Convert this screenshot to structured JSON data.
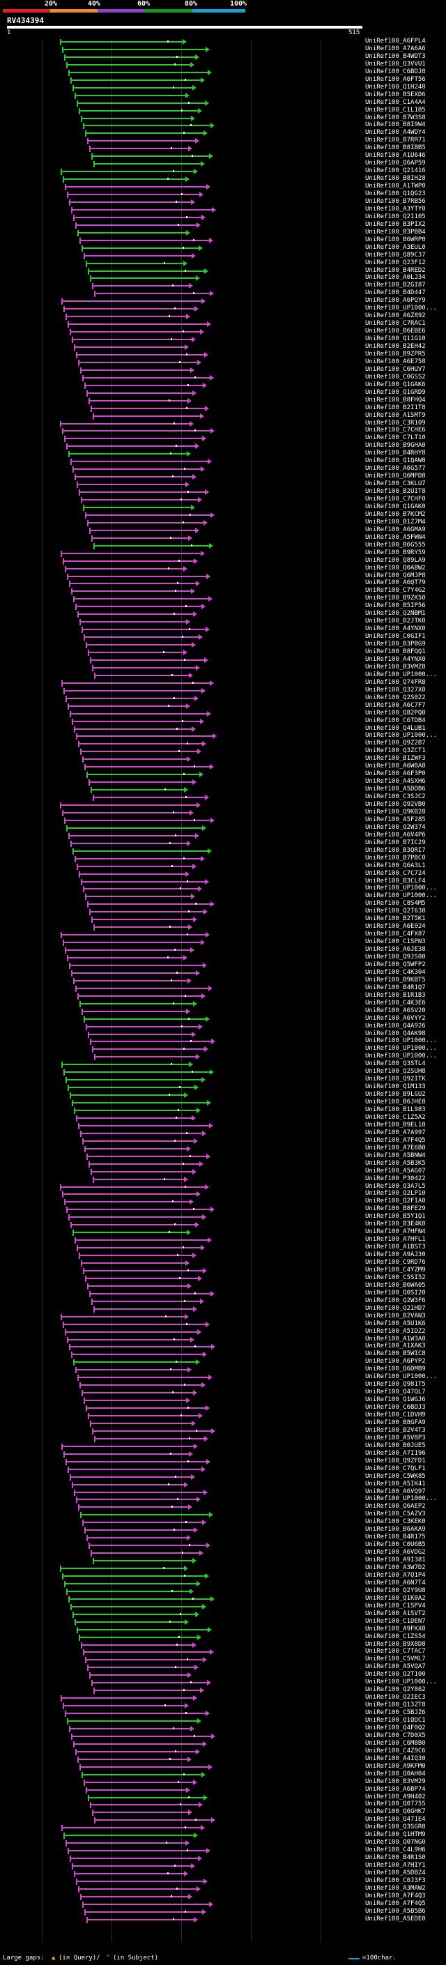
{
  "header": {
    "thresholds": [
      "20%",
      "40%",
      "60%",
      "80%",
      "100%"
    ],
    "band_colors": [
      "#e0192b",
      "#f08a24",
      "#8a43c4",
      "#159a18",
      "#1ca0d6"
    ],
    "query_name": "RV434394"
  },
  "axis": {
    "start_label": "1",
    "end_label": "515"
  },
  "colors": {
    "magenta": "#d048d0",
    "green": "#29c82b",
    "gridline": "#2a2a2a",
    "legend_cyan": "#00a7c7"
  },
  "hits": [
    {
      "label": "UniRef100_A6FPL4",
      "color": "green"
    },
    {
      "label": "UniRef100_A7A6A6",
      "color": "green"
    },
    {
      "label": "UniRef100_B4WDT3",
      "color": "green"
    },
    {
      "label": "UniRef100_Q3VVU1",
      "color": "green"
    },
    {
      "label": "UniRef100_C6BDJ8",
      "color": "green"
    },
    {
      "label": "UniRef100_A6FT56",
      "color": "green"
    },
    {
      "label": "UniRef100_Q1H248",
      "color": "green"
    },
    {
      "label": "UniRef100_B5EXD6",
      "color": "green"
    },
    {
      "label": "UniRef100_C1A4A4",
      "color": "green"
    },
    {
      "label": "UniRef100_C1L1B5",
      "color": "green"
    },
    {
      "label": "UniRef100_B7W3S8",
      "color": "green"
    },
    {
      "label": "UniRef100_B8I9W4",
      "color": "green"
    },
    {
      "label": "UniRef100_A4WDY4",
      "color": "green"
    },
    {
      "label": "UniRef100_B7RR71",
      "color": "magenta"
    },
    {
      "label": "UniRef100_B8IBB5",
      "color": "magenta"
    },
    {
      "label": "UniRef100_A1U646",
      "color": "green"
    },
    {
      "label": "UniRef100_Q6AP59",
      "color": "green"
    },
    {
      "label": "UniRef100_Q21416",
      "color": "green"
    },
    {
      "label": "UniRef100_B8IH28",
      "color": "green"
    },
    {
      "label": "UniRef100_A1TWP0",
      "color": "magenta"
    },
    {
      "label": "UniRef100_Q1QG23",
      "color": "magenta"
    },
    {
      "label": "UniRef100_B7RB56",
      "color": "magenta"
    },
    {
      "label": "UniRef100_A3YTY0",
      "color": "magenta"
    },
    {
      "label": "UniRef100_Q21105",
      "color": "magenta"
    },
    {
      "label": "UniRef100_B3PIX2",
      "color": "magenta"
    },
    {
      "label": "UniRef100_B3PBB4",
      "color": "green"
    },
    {
      "label": "UniRef100_B6WRP0",
      "color": "magenta"
    },
    {
      "label": "UniRef100_A3EUL0",
      "color": "green"
    },
    {
      "label": "UniRef100_Q89C37",
      "color": "magenta"
    },
    {
      "label": "UniRef100_Q23F12",
      "color": "green"
    },
    {
      "label": "UniRef100_B4RED2",
      "color": "green"
    },
    {
      "label": "UniRef100_A0LJ34",
      "color": "green"
    },
    {
      "label": "UniRef100_B2GI87",
      "color": "magenta"
    },
    {
      "label": "UniRef100_B4D447",
      "color": "magenta"
    },
    {
      "label": "UniRef100_A6PQY9",
      "color": "magenta"
    },
    {
      "label": "UniRef100_UP1000...",
      "color": "magenta"
    },
    {
      "label": "UniRef100_A6Z892",
      "color": "magenta"
    },
    {
      "label": "UniRef100_C7RAC1",
      "color": "magenta"
    },
    {
      "label": "UniRef100_B6EBE6",
      "color": "magenta"
    },
    {
      "label": "UniRef100_Q11G10",
      "color": "magenta"
    },
    {
      "label": "UniRef100_B2EH42",
      "color": "magenta"
    },
    {
      "label": "UniRef100_B9ZPR5",
      "color": "magenta"
    },
    {
      "label": "UniRef100_A6E758",
      "color": "magenta"
    },
    {
      "label": "UniRef100_C6HUV7",
      "color": "magenta"
    },
    {
      "label": "UniRef100_C0GSS2",
      "color": "magenta"
    },
    {
      "label": "UniRef100_Q1GAK6",
      "color": "magenta"
    },
    {
      "label": "UniRef100_Q1GRD9",
      "color": "magenta"
    },
    {
      "label": "UniRef100_B8FHQ4",
      "color": "magenta"
    },
    {
      "label": "UniRef100_B2I1T8",
      "color": "magenta"
    },
    {
      "label": "UniRef100_A1SMT9",
      "color": "magenta"
    },
    {
      "label": "UniRef100_C3R109",
      "color": "magenta"
    },
    {
      "label": "UniRef100_C7CHE6",
      "color": "magenta"
    },
    {
      "label": "UniRef100_C7LT10",
      "color": "magenta"
    },
    {
      "label": "UniRef100_B9GHA0",
      "color": "magenta"
    },
    {
      "label": "UniRef100_B4RHY8",
      "color": "green"
    },
    {
      "label": "UniRef100_Q1QAW8",
      "color": "magenta"
    },
    {
      "label": "UniRef100_A6G577",
      "color": "magenta"
    },
    {
      "label": "UniRef100_Q6MPD8",
      "color": "magenta"
    },
    {
      "label": "UniRef100_C3KLU7",
      "color": "magenta"
    },
    {
      "label": "UniRef100_B2UIT8",
      "color": "magenta"
    },
    {
      "label": "UniRef100_C7CHF0",
      "color": "magenta"
    },
    {
      "label": "UniRef100_Q1GAK0",
      "color": "green"
    },
    {
      "label": "UniRef100_B7KCM2",
      "color": "magenta"
    },
    {
      "label": "UniRef100_B1Z7M4",
      "color": "magenta"
    },
    {
      "label": "UniRef100_A6GMA9",
      "color": "magenta"
    },
    {
      "label": "UniRef100_A5FWN4",
      "color": "magenta"
    },
    {
      "label": "UniRef100_B6G555",
      "color": "green"
    },
    {
      "label": "UniRef100_B9RY59",
      "color": "magenta"
    },
    {
      "label": "UniRef100_Q89LA9",
      "color": "magenta"
    },
    {
      "label": "UniRef100_Q0ABW2",
      "color": "magenta"
    },
    {
      "label": "UniRef100_Q6MJP8",
      "color": "magenta"
    },
    {
      "label": "UniRef100_A6QT79",
      "color": "magenta"
    },
    {
      "label": "UniRef100_C7Y4G2",
      "color": "magenta"
    },
    {
      "label": "UniRef100_B9ZK50",
      "color": "magenta"
    },
    {
      "label": "UniRef100_B5IP56",
      "color": "magenta"
    },
    {
      "label": "UniRef100_Q2NBM1",
      "color": "magenta"
    },
    {
      "label": "UniRef100_B2JTK0",
      "color": "magenta"
    },
    {
      "label": "UniRef100_A4YNX0",
      "color": "magenta"
    },
    {
      "label": "UniRef100_C0GIF1",
      "color": "magenta"
    },
    {
      "label": "UniRef100_B3PBG9",
      "color": "magenta"
    },
    {
      "label": "UniRef100_B8FQQ1",
      "color": "magenta"
    },
    {
      "label": "UniRef100_A4YNX0",
      "color": "magenta"
    },
    {
      "label": "UniRef100_B3VMZ8",
      "color": "magenta"
    },
    {
      "label": "UniRef100_UP1000...",
      "color": "magenta"
    },
    {
      "label": "UniRef100_Q74FR8",
      "color": "magenta"
    },
    {
      "label": "UniRef100_Q327X0",
      "color": "magenta"
    },
    {
      "label": "UniRef100_Q2S022",
      "color": "magenta"
    },
    {
      "label": "UniRef100_A6C7F7",
      "color": "magenta"
    },
    {
      "label": "UniRef100_Q82PQ0",
      "color": "magenta"
    },
    {
      "label": "UniRef100_C6TDB4",
      "color": "magenta"
    },
    {
      "label": "UniRef100_Q4LUB1",
      "color": "magenta"
    },
    {
      "label": "UniRef100_UP1000...",
      "color": "magenta"
    },
    {
      "label": "UniRef100_Q9Z2B7",
      "color": "magenta"
    },
    {
      "label": "UniRef100_Q3ZCT1",
      "color": "magenta"
    },
    {
      "label": "UniRef100_B1ZWF3",
      "color": "magenta"
    },
    {
      "label": "UniRef100_A6W0A8",
      "color": "magenta"
    },
    {
      "label": "UniRef100_A6F3P0",
      "color": "green"
    },
    {
      "label": "UniRef100_A4SXH6",
      "color": "magenta"
    },
    {
      "label": "UniRef100_A5DDB6",
      "color": "green"
    },
    {
      "label": "UniRef100_C3SJC2",
      "color": "magenta"
    },
    {
      "label": "UniRef100_Q92VB0",
      "color": "magenta"
    },
    {
      "label": "UniRef100_Q9KB28",
      "color": "magenta"
    },
    {
      "label": "UniRef100_A5F285",
      "color": "magenta"
    },
    {
      "label": "UniRef100_Q2W374",
      "color": "green"
    },
    {
      "label": "UniRef100_A6V4P6",
      "color": "magenta"
    },
    {
      "label": "UniRef100_B7IC29",
      "color": "magenta"
    },
    {
      "label": "UniRef100_B3QRI7",
      "color": "green"
    },
    {
      "label": "UniRef100_B7PBC0",
      "color": "magenta"
    },
    {
      "label": "UniRef100_Q6A3L1",
      "color": "magenta"
    },
    {
      "label": "UniRef100_C7C724",
      "color": "magenta"
    },
    {
      "label": "UniRef100_B3CLF4",
      "color": "magenta"
    },
    {
      "label": "UniRef100_UP1000...",
      "color": "magenta"
    },
    {
      "label": "UniRef100_UP1000...",
      "color": "magenta"
    },
    {
      "label": "UniRef100_C8S4M5",
      "color": "magenta"
    },
    {
      "label": "UniRef100_Q2T638",
      "color": "magenta"
    },
    {
      "label": "UniRef100_B2T5K1",
      "color": "magenta"
    },
    {
      "label": "UniRef100_A6E024",
      "color": "magenta"
    },
    {
      "label": "UniRef100_C4FX87",
      "color": "magenta"
    },
    {
      "label": "UniRef100_C1SPN3",
      "color": "magenta"
    },
    {
      "label": "UniRef100_A6JE38",
      "color": "magenta"
    },
    {
      "label": "UniRef100_Q9JS00",
      "color": "magenta"
    },
    {
      "label": "UniRef100_Q5WFP2",
      "color": "magenta"
    },
    {
      "label": "UniRef100_C4K304",
      "color": "magenta"
    },
    {
      "label": "UniRef100_B9KBT5",
      "color": "magenta"
    },
    {
      "label": "UniRef100_B4R1Q7",
      "color": "magenta"
    },
    {
      "label": "UniRef100_B1R1B3",
      "color": "magenta"
    },
    {
      "label": "UniRef100_C4K3E6",
      "color": "green"
    },
    {
      "label": "UniRef100_A6SV20",
      "color": "magenta"
    },
    {
      "label": "UniRef100_A6VYY2",
      "color": "green"
    },
    {
      "label": "UniRef100_Q4A926",
      "color": "magenta"
    },
    {
      "label": "UniRef100_Q4AK98",
      "color": "magenta"
    },
    {
      "label": "UniRef100_UP1000...",
      "color": "magenta"
    },
    {
      "label": "UniRef100_UP1000...",
      "color": "magenta"
    },
    {
      "label": "UniRef100_UP1000...",
      "color": "magenta"
    },
    {
      "label": "UniRef100_Q3STL4",
      "color": "green"
    },
    {
      "label": "UniRef100_Q2SUH8",
      "color": "green"
    },
    {
      "label": "UniRef100_Q92ITK",
      "color": "green"
    },
    {
      "label": "UniRef100_Q1M133",
      "color": "green"
    },
    {
      "label": "UniRef100_B9LGU2",
      "color": "green"
    },
    {
      "label": "UniRef100_B6JHE8",
      "color": "green"
    },
    {
      "label": "UniRef100_B1L983",
      "color": "green"
    },
    {
      "label": "UniRef100_C1Z5A2",
      "color": "magenta"
    },
    {
      "label": "UniRef100_B9EL18",
      "color": "magenta"
    },
    {
      "label": "UniRef100_A7A997",
      "color": "magenta"
    },
    {
      "label": "UniRef100_A7F4Q5",
      "color": "magenta"
    },
    {
      "label": "UniRef100_A7E6B0",
      "color": "magenta"
    },
    {
      "label": "UniRef100_A5BNW4",
      "color": "magenta"
    },
    {
      "label": "UniRef100_A5B3K5",
      "color": "magenta"
    },
    {
      "label": "UniRef100_A5AG07",
      "color": "magenta"
    },
    {
      "label": "UniRef100_P30422",
      "color": "magenta"
    },
    {
      "label": "UniRef100_Q3A7L5",
      "color": "magenta"
    },
    {
      "label": "UniRef100_Q2LP10",
      "color": "magenta"
    },
    {
      "label": "UniRef100_Q2FIA0",
      "color": "magenta"
    },
    {
      "label": "UniRef100_B8FE29",
      "color": "magenta"
    },
    {
      "label": "UniRef100_B5Y1Q1",
      "color": "magenta"
    },
    {
      "label": "UniRef100_B3E4K0",
      "color": "magenta"
    },
    {
      "label": "UniRef100_A7HFN4",
      "color": "green"
    },
    {
      "label": "UniRef100_A7HFL1",
      "color": "magenta"
    },
    {
      "label": "UniRef100_A1BST3",
      "color": "magenta"
    },
    {
      "label": "UniRef100_A9AJ30",
      "color": "magenta"
    },
    {
      "label": "UniRef100_C9RD76",
      "color": "magenta"
    },
    {
      "label": "UniRef100_C4YZM9",
      "color": "magenta"
    },
    {
      "label": "UniRef100_C5SI52",
      "color": "magenta"
    },
    {
      "label": "UniRef100_B6WA05",
      "color": "magenta"
    },
    {
      "label": "UniRef100_Q0SI20",
      "color": "magenta"
    },
    {
      "label": "UniRef100_Q2W3F6",
      "color": "magenta"
    },
    {
      "label": "UniRef100_Q21HD7",
      "color": "magenta"
    },
    {
      "label": "UniRef100_B2VAN3",
      "color": "magenta"
    },
    {
      "label": "UniRef100_A5U1K6",
      "color": "magenta"
    },
    {
      "label": "UniRef100_A5IDZ2",
      "color": "magenta"
    },
    {
      "label": "UniRef100_A1W3A0",
      "color": "magenta"
    },
    {
      "label": "UniRef100_A1XAK3",
      "color": "magenta"
    },
    {
      "label": "UniRef100_B5WIC8",
      "color": "magenta"
    },
    {
      "label": "UniRef100_A6PYP2",
      "color": "green"
    },
    {
      "label": "UniRef100_Q6DMB9",
      "color": "magenta"
    },
    {
      "label": "UniRef100_UP1000...",
      "color": "magenta"
    },
    {
      "label": "UniRef100_Q981T5",
      "color": "magenta"
    },
    {
      "label": "UniRef100_Q47QL7",
      "color": "magenta"
    },
    {
      "label": "UniRef100_Q1WGJ6",
      "color": "magenta"
    },
    {
      "label": "UniRef100_C6BDJ3",
      "color": "magenta"
    },
    {
      "label": "UniRef100_C1DVH9",
      "color": "magenta"
    },
    {
      "label": "UniRef100_B8GFA9",
      "color": "magenta"
    },
    {
      "label": "UniRef100_B2V4T3",
      "color": "magenta"
    },
    {
      "label": "UniRef100_A5V8P3",
      "color": "magenta"
    },
    {
      "label": "UniRef100_B0JUE5",
      "color": "magenta"
    },
    {
      "label": "UniRef100_A7I196",
      "color": "magenta"
    },
    {
      "label": "UniRef100_Q9ZFD1",
      "color": "magenta"
    },
    {
      "label": "UniRef100_C7QLF1",
      "color": "magenta"
    },
    {
      "label": "UniRef100_C5WK85",
      "color": "magenta"
    },
    {
      "label": "UniRef100_A5IK41",
      "color": "magenta"
    },
    {
      "label": "UniRef100_A6VQ97",
      "color": "magenta"
    },
    {
      "label": "UniRef100_UP1000...",
      "color": "magenta"
    },
    {
      "label": "UniRef100_Q6AEP2",
      "color": "magenta"
    },
    {
      "label": "UniRef100_C5AZV3",
      "color": "green"
    },
    {
      "label": "UniRef100_C3KEK0",
      "color": "magenta"
    },
    {
      "label": "UniRef100_B6AKA9",
      "color": "magenta"
    },
    {
      "label": "UniRef100_B4R175",
      "color": "magenta"
    },
    {
      "label": "UniRef100_C0U6B5",
      "color": "magenta"
    },
    {
      "label": "UniRef100_A6VDG2",
      "color": "magenta"
    },
    {
      "label": "UniRef100_A9I381",
      "color": "green"
    },
    {
      "label": "UniRef100_A3W7D2",
      "color": "green"
    },
    {
      "label": "UniRef100_A7Q1P4",
      "color": "green"
    },
    {
      "label": "UniRef100_A6N7T4",
      "color": "green"
    },
    {
      "label": "UniRef100_Q2Y9U8",
      "color": "green"
    },
    {
      "label": "UniRef100_Q1K0A2",
      "color": "green"
    },
    {
      "label": "UniRef100_C1SPV4",
      "color": "green"
    },
    {
      "label": "UniRef100_A1SVT2",
      "color": "green"
    },
    {
      "label": "UniRef100_C1DEN7",
      "color": "green"
    },
    {
      "label": "UniRef100_A9FKX0",
      "color": "green"
    },
    {
      "label": "UniRef100_C1ZS54",
      "color": "green"
    },
    {
      "label": "UniRef100_B9X8D8",
      "color": "magenta"
    },
    {
      "label": "UniRef100_C7TAC7",
      "color": "magenta"
    },
    {
      "label": "UniRef100_C5VML7",
      "color": "magenta"
    },
    {
      "label": "UniRef100_A5VQA7",
      "color": "magenta"
    },
    {
      "label": "UniRef100_Q2T100",
      "color": "magenta"
    },
    {
      "label": "UniRef100_UP1000...",
      "color": "magenta"
    },
    {
      "label": "UniRef100_Q2Y862",
      "color": "magenta"
    },
    {
      "label": "UniRef100_Q2IEC3",
      "color": "magenta"
    },
    {
      "label": "UniRef100_Q13ZT8",
      "color": "magenta"
    },
    {
      "label": "UniRef100_C5BJZ6",
      "color": "magenta"
    },
    {
      "label": "UniRef100_Q1QDC1",
      "color": "green"
    },
    {
      "label": "UniRef100_Q4F0Q2",
      "color": "magenta"
    },
    {
      "label": "UniRef100_C7D0X5",
      "color": "magenta"
    },
    {
      "label": "UniRef100_C6M8B0",
      "color": "magenta"
    },
    {
      "label": "UniRef100_C4Z9C6",
      "color": "magenta"
    },
    {
      "label": "UniRef100_A4IQ30",
      "color": "magenta"
    },
    {
      "label": "UniRef100_A9KFM0",
      "color": "magenta"
    },
    {
      "label": "UniRef100_Q0AH04",
      "color": "green"
    },
    {
      "label": "UniRef100_B3VM29",
      "color": "magenta"
    },
    {
      "label": "UniRef100_A6BP74",
      "color": "magenta"
    },
    {
      "label": "UniRef100_A9H402",
      "color": "green"
    },
    {
      "label": "UniRef100_Q07755",
      "color": "magenta"
    },
    {
      "label": "UniRef100_Q6GHK7",
      "color": "magenta"
    },
    {
      "label": "UniRef100_Q471E4",
      "color": "magenta"
    },
    {
      "label": "UniRef100_Q3SGR8",
      "color": "magenta"
    },
    {
      "label": "UniRef100_Q1HTM9",
      "color": "green"
    },
    {
      "label": "UniRef100_Q07NG0",
      "color": "magenta"
    },
    {
      "label": "UniRef100_C4L9H6",
      "color": "magenta"
    },
    {
      "label": "UniRef100_B4R1S0",
      "color": "magenta"
    },
    {
      "label": "UniRef100_A7HIY1",
      "color": "magenta"
    },
    {
      "label": "UniRef100_A5DBZ4",
      "color": "magenta"
    },
    {
      "label": "UniRef100_C0J3F3",
      "color": "magenta"
    },
    {
      "label": "UniRef100_A3MAW2",
      "color": "magenta"
    },
    {
      "label": "UniRef100_A7F4Q3",
      "color": "magenta"
    },
    {
      "label": "UniRef100_A7F4Q5",
      "color": "magenta"
    },
    {
      "label": "UniRef100_A5B5B6",
      "color": "magenta"
    },
    {
      "label": "UniRef100_A5EDE0",
      "color": "magenta"
    }
  ],
  "footer": {
    "large_gaps_label": "Large gaps:",
    "query_gap_text": "(in Query)/",
    "subject_gap_text": "(in Subject)",
    "scale_text": "=100char."
  }
}
